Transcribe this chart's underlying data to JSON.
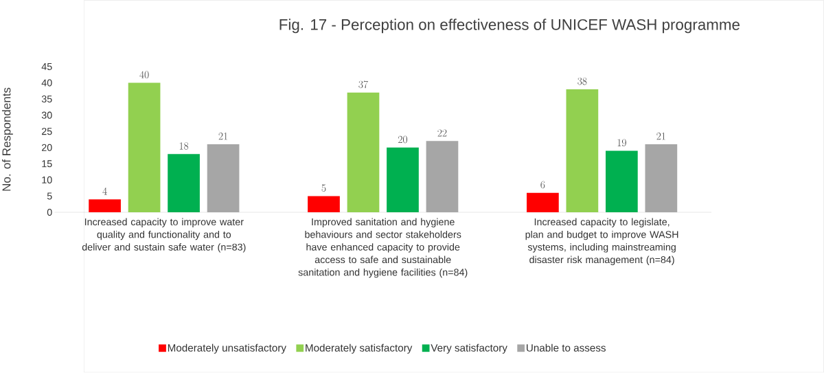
{
  "chart_data": {
    "type": "bar",
    "title": "Fig. 17 - Perception on effectiveness of UNICEF WASH programme",
    "ylabel": "No. of Respondents",
    "categories": [
      "Increased capacity to improve water quality and functionality and to deliver and sustain safe water (n=83)",
      "Improved sanitation and hygiene behaviours and sector stakeholders have enhanced capacity to provide access to safe and sustainable sanitation and hygiene facilities (n=84)",
      "Increased capacity to legislate, plan and budget to improve WASH systems, including mainstreaming disaster risk management (n=84)"
    ],
    "series": [
      {
        "name": "Moderately unsatisfactory",
        "color": "#ff0000",
        "values": [
          4,
          5,
          6
        ]
      },
      {
        "name": "Moderately satisfactory",
        "color": "#92d050",
        "values": [
          40,
          37,
          38
        ]
      },
      {
        "name": "Very satisfactory",
        "color": "#00b050",
        "values": [
          18,
          20,
          19
        ]
      },
      {
        "name": "Unable to assess",
        "color": "#a6a6a6",
        "values": [
          21,
          22,
          21
        ]
      }
    ],
    "ylim": [
      0,
      45
    ],
    "yticks": [
      0,
      5,
      10,
      15,
      20,
      25,
      30,
      35,
      40,
      45
    ],
    "legend": "bottom",
    "data_labels": true
  }
}
